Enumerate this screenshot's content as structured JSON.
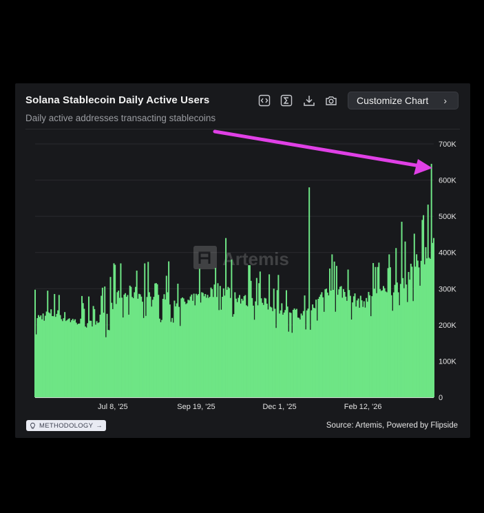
{
  "header": {
    "title": "Solana Stablecoin Daily Active Users",
    "subtitle": "Daily active addresses transacting stablecoins",
    "customize_label": "Customize Chart",
    "tool_icons": [
      "embed-code-icon",
      "sum-icon",
      "download-icon",
      "camera-icon"
    ]
  },
  "footer": {
    "methodology_label": "METHODOLOGY",
    "source_text": "Source: Artemis, Powered by Flipside"
  },
  "watermark": {
    "text": "Artemis"
  },
  "colors": {
    "bar_fill": "#6ee585",
    "background": "#18191c",
    "arrow": "#e040e6"
  },
  "chart_data": {
    "type": "area",
    "title": "Solana Stablecoin Daily Active Users",
    "subtitle": "Daily active addresses transacting stablecoins",
    "x_tick_labels": [
      "Jul 8, '25",
      "Sep 19, '25",
      "Dec 1, '25",
      "Feb 12, '26"
    ],
    "y_tick_labels": [
      "0",
      "100K",
      "200K",
      "300K",
      "400K",
      "500K",
      "600K",
      "700K"
    ],
    "ylim": [
      0,
      700000
    ],
    "y_axis_side": "right",
    "grid": true,
    "x_range": [
      "2025-05-01",
      "2026-04-15"
    ],
    "series": [
      {
        "dates": [
          "2025-05-01",
          "2025-05-08",
          "2025-05-15",
          "2025-05-22",
          "2025-05-29",
          "2025-06-05",
          "2025-06-12",
          "2025-06-19",
          "2025-06-26",
          "2025-07-03",
          "2025-07-10",
          "2025-07-17",
          "2025-07-24",
          "2025-07-31",
          "2025-08-07",
          "2025-08-14",
          "2025-08-21",
          "2025-08-28",
          "2025-09-04",
          "2025-09-11",
          "2025-09-18",
          "2025-09-25",
          "2025-10-02",
          "2025-10-09",
          "2025-10-16",
          "2025-10-23",
          "2025-10-30",
          "2025-11-06",
          "2025-11-13",
          "2025-11-20",
          "2025-11-27",
          "2025-12-04",
          "2025-12-11",
          "2025-12-18",
          "2025-12-25",
          "2026-01-01",
          "2026-01-08",
          "2026-01-15",
          "2026-01-22",
          "2026-01-29",
          "2026-02-05",
          "2026-02-12",
          "2026-02-19",
          "2026-02-26",
          "2026-03-05",
          "2026-03-12",
          "2026-03-19",
          "2026-03-26",
          "2026-04-02",
          "2026-04-09",
          "2026-04-15"
        ],
        "values": [
          215000,
          225000,
          230000,
          228000,
          220000,
          210000,
          205000,
          200000,
          215000,
          225000,
          275000,
          280000,
          290000,
          285000,
          280000,
          260000,
          275000,
          270000,
          265000,
          260000,
          270000,
          280000,
          290000,
          300000,
          295000,
          285000,
          270000,
          260000,
          265000,
          255000,
          250000,
          245000,
          240000,
          225000,
          230000,
          255000,
          290000,
          300000,
          295000,
          285000,
          270000,
          260000,
          280000,
          295000,
          285000,
          300000,
          320000,
          345000,
          380000,
          400000,
          420000
        ]
      }
    ],
    "spikes": [
      {
        "date": "2025-07-15",
        "value": 370000
      },
      {
        "date": "2025-07-29",
        "value": 350000
      },
      {
        "date": "2025-08-05",
        "value": 370000
      },
      {
        "date": "2025-09-22",
        "value": 355000
      },
      {
        "date": "2025-10-15",
        "value": 440000
      },
      {
        "date": "2025-11-05",
        "value": 365000
      },
      {
        "date": "2025-12-27",
        "value": 580000
      },
      {
        "date": "2026-01-18",
        "value": 375000
      },
      {
        "date": "2026-02-25",
        "value": 360000
      },
      {
        "date": "2026-03-18",
        "value": 485000
      },
      {
        "date": "2026-04-05",
        "value": 490000
      },
      {
        "date": "2026-04-13",
        "value": 645000
      }
    ],
    "annotations": [
      {
        "type": "arrow",
        "target": "last data point (peak)"
      }
    ]
  }
}
